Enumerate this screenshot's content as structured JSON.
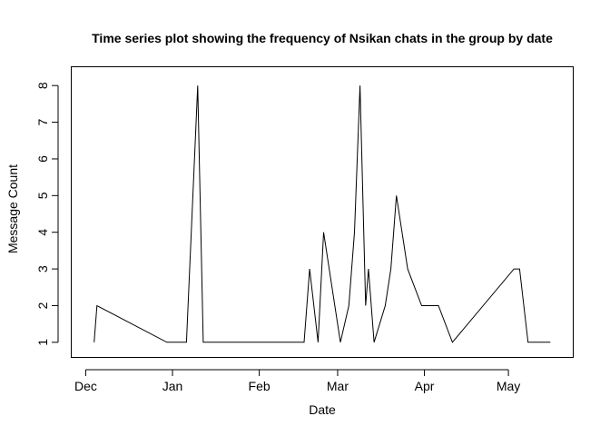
{
  "chart_data": {
    "type": "line",
    "title": "Time series plot showing the frequency of Nsikan chats in the group by date",
    "xlabel": "Date",
    "ylabel": "Message Count",
    "xlim": [
      "2018-11-26",
      "2019-05-24"
    ],
    "ylim": [
      0.6,
      8.5
    ],
    "x_ticks": [
      {
        "label": "Dec",
        "date": "2018-12-01"
      },
      {
        "label": "Jan",
        "date": "2019-01-01"
      },
      {
        "label": "Feb",
        "date": "2019-02-01"
      },
      {
        "label": "Mar",
        "date": "2019-03-01"
      },
      {
        "label": "Apr",
        "date": "2019-04-01"
      },
      {
        "label": "May",
        "date": "2019-05-01"
      }
    ],
    "y_ticks": [
      1,
      2,
      3,
      4,
      5,
      6,
      7,
      8
    ],
    "grid": false,
    "legend": "none",
    "series": [
      {
        "points": [
          {
            "x": "2018-12-04",
            "y": 1
          },
          {
            "x": "2018-12-05",
            "y": 2
          },
          {
            "x": "2018-12-30",
            "y": 1
          },
          {
            "x": "2019-01-06",
            "y": 1
          },
          {
            "x": "2019-01-10",
            "y": 8
          },
          {
            "x": "2019-01-12",
            "y": 1
          },
          {
            "x": "2019-02-17",
            "y": 1
          },
          {
            "x": "2019-02-19",
            "y": 3
          },
          {
            "x": "2019-02-22",
            "y": 1
          },
          {
            "x": "2019-02-24",
            "y": 4
          },
          {
            "x": "2019-03-02",
            "y": 1
          },
          {
            "x": "2019-03-05",
            "y": 2
          },
          {
            "x": "2019-03-07",
            "y": 4
          },
          {
            "x": "2019-03-09",
            "y": 8
          },
          {
            "x": "2019-03-11",
            "y": 2
          },
          {
            "x": "2019-03-12",
            "y": 3
          },
          {
            "x": "2019-03-14",
            "y": 1
          },
          {
            "x": "2019-03-18",
            "y": 2
          },
          {
            "x": "2019-03-20",
            "y": 3
          },
          {
            "x": "2019-03-22",
            "y": 5
          },
          {
            "x": "2019-03-26",
            "y": 3
          },
          {
            "x": "2019-03-31",
            "y": 2
          },
          {
            "x": "2019-04-06",
            "y": 2
          },
          {
            "x": "2019-04-11",
            "y": 1
          },
          {
            "x": "2019-05-03",
            "y": 3
          },
          {
            "x": "2019-05-05",
            "y": 3
          },
          {
            "x": "2019-05-08",
            "y": 1
          },
          {
            "x": "2019-05-16",
            "y": 1
          }
        ]
      }
    ]
  }
}
